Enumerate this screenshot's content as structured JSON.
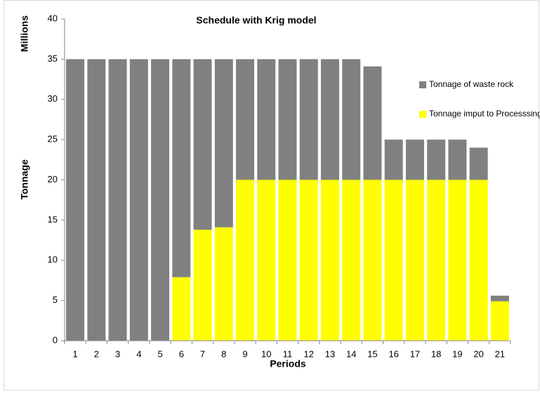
{
  "chart_data": {
    "type": "stacked_bar",
    "title": "Schedule with Krig model",
    "units_label": "Millions",
    "y_label": "Tonnage",
    "x_label": "Periods",
    "categories": [
      "1",
      "2",
      "3",
      "4",
      "5",
      "6",
      "7",
      "8",
      "9",
      "10",
      "11",
      "12",
      "13",
      "14",
      "15",
      "16",
      "17",
      "18",
      "19",
      "20",
      "21"
    ],
    "series": [
      {
        "name": "Tonnage of waste rock",
        "color": "#808080",
        "values": [
          35,
          35,
          35,
          35,
          35,
          27.1,
          21.2,
          20.9,
          15,
          15,
          15,
          15,
          15,
          15,
          14.1,
          5,
          5,
          5,
          5,
          4,
          0.7
        ]
      },
      {
        "name": "Tonnage imput to Processsing",
        "color": "#ffff00",
        "values": [
          0,
          0,
          0,
          0,
          0,
          7.9,
          13.8,
          14.1,
          20,
          20,
          20,
          20,
          20,
          20,
          20,
          20,
          20,
          20,
          20,
          20,
          4.9
        ]
      }
    ],
    "ylim": [
      0,
      40
    ],
    "yticks": [
      0,
      5,
      10,
      15,
      20,
      25,
      30,
      35,
      40
    ],
    "grid": false,
    "legend": "right"
  }
}
